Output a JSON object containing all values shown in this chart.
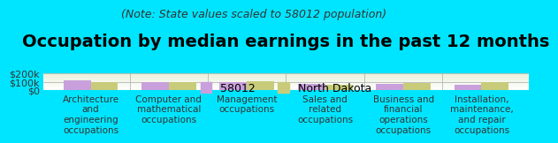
{
  "title": "Occupation by median earnings in the past 12 months",
  "subtitle": "(Note: State values scaled to 58012 population)",
  "background_color": "#00e5ff",
  "categories": [
    "Architecture\nand\nengineering\noccupations",
    "Computer and\nmathematical\noccupations",
    "Management\noccupations",
    "Sales and\nrelated\noccupations",
    "Business and\nfinancial\noperations\noccupations",
    "Installation,\nmaintenance,\nand repair\noccupations"
  ],
  "values_58012": [
    118000,
    98000,
    98000,
    72000,
    72000,
    68000
  ],
  "values_nd": [
    92000,
    93000,
    102000,
    63000,
    85000,
    95000
  ],
  "color_58012": "#c9a0dc",
  "color_nd": "#c8cc7a",
  "ylim": [
    0,
    200000
  ],
  "yticks": [
    0,
    100000,
    200000
  ],
  "ytick_labels": [
    "$0",
    "$100k",
    "$200k"
  ],
  "legend_labels": [
    "58012",
    "North Dakota"
  ],
  "bar_width": 0.35,
  "title_fontsize": 14,
  "subtitle_fontsize": 9,
  "tick_fontsize": 8,
  "legend_fontsize": 9
}
